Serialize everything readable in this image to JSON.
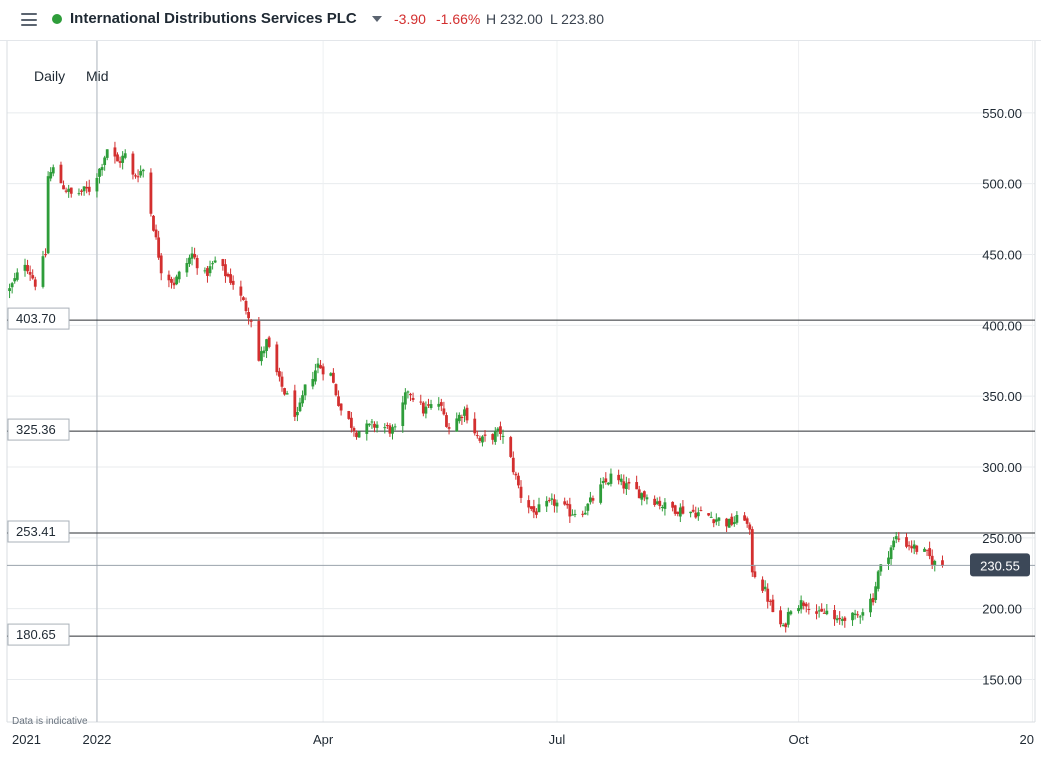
{
  "header": {
    "instrument": "International Distributions Services PLC",
    "change": "-3.90",
    "change_pct": "-1.66%",
    "high": "H 232.00",
    "low": "L 223.80"
  },
  "toolbar": {
    "interval": "Daily",
    "price_type": "Mid"
  },
  "footnote": "Data is indicative",
  "colors": {
    "up": "#2e9d3a",
    "down": "#d32f2f",
    "live_dot": "#2e9d3a",
    "last_price_tag": "#3c4858"
  },
  "chart_data": {
    "type": "candlestick",
    "y_ticks": [
      "550.00",
      "500.00",
      "450.00",
      "400.00",
      "350.00",
      "300.00",
      "250.00",
      "200.00",
      "150.00"
    ],
    "y_tick_values": [
      550,
      500,
      450,
      400,
      350,
      300,
      250,
      200,
      150
    ],
    "x_ticks": [
      "2021",
      "2022",
      "Apr",
      "Jul",
      "Oct",
      "20"
    ],
    "x_tick_dates": [
      "2021-11-29",
      "2022-01-03",
      "2022-04-01",
      "2022-07-01",
      "2022-10-03",
      "2023-01-02"
    ],
    "y_range": [
      120,
      600
    ],
    "x_range": [
      "2021-11-29",
      "2023-01-03"
    ],
    "horizontal_lines": [
      {
        "label": "403.70",
        "value": 403.7
      },
      {
        "label": "325.36",
        "value": 325.36
      },
      {
        "label": "253.41",
        "value": 253.41
      },
      {
        "label": "180.65",
        "value": 180.65
      }
    ],
    "last_price": {
      "label": "230.55",
      "value": 230.55
    },
    "vertical_marker_date": "2022-01-03",
    "grid": true,
    "anchors": [
      [
        "2021-11-30",
        425
      ],
      [
        "2021-12-06",
        445
      ],
      [
        "2021-12-10",
        430
      ],
      [
        "2021-12-14",
        450
      ],
      [
        "2021-12-15",
        505
      ],
      [
        "2021-12-17",
        510
      ],
      [
        "2021-12-21",
        498
      ],
      [
        "2021-12-24",
        492
      ],
      [
        "2021-12-31",
        496
      ],
      [
        "2022-01-04",
        510
      ],
      [
        "2022-01-07",
        525
      ],
      [
        "2022-01-11",
        515
      ],
      [
        "2022-01-14",
        520
      ],
      [
        "2022-01-17",
        505
      ],
      [
        "2022-01-21",
        510
      ],
      [
        "2022-01-25",
        470
      ],
      [
        "2022-01-28",
        440
      ],
      [
        "2022-02-02",
        430
      ],
      [
        "2022-02-09",
        450
      ],
      [
        "2022-02-14",
        435
      ],
      [
        "2022-02-18",
        445
      ],
      [
        "2022-02-25",
        430
      ],
      [
        "2022-03-04",
        405
      ],
      [
        "2022-03-07",
        375
      ],
      [
        "2022-03-10",
        388
      ],
      [
        "2022-03-15",
        360
      ],
      [
        "2022-03-22",
        335
      ],
      [
        "2022-03-25",
        355
      ],
      [
        "2022-03-30",
        372
      ],
      [
        "2022-04-04",
        365
      ],
      [
        "2022-04-08",
        340
      ],
      [
        "2022-04-14",
        325
      ],
      [
        "2022-04-22",
        330
      ],
      [
        "2022-04-29",
        325
      ],
      [
        "2022-05-04",
        355
      ],
      [
        "2022-05-10",
        340
      ],
      [
        "2022-05-16",
        345
      ],
      [
        "2022-05-20",
        328
      ],
      [
        "2022-05-26",
        340
      ],
      [
        "2022-06-01",
        318
      ],
      [
        "2022-06-06",
        322
      ],
      [
        "2022-06-09",
        325
      ],
      [
        "2022-06-13",
        305
      ],
      [
        "2022-06-17",
        280
      ],
      [
        "2022-06-22",
        268
      ],
      [
        "2022-06-30",
        275
      ],
      [
        "2022-07-06",
        268
      ],
      [
        "2022-07-12",
        270
      ],
      [
        "2022-07-18",
        285
      ],
      [
        "2022-07-22",
        293
      ],
      [
        "2022-07-27",
        287
      ],
      [
        "2022-08-02",
        282
      ],
      [
        "2022-08-08",
        277
      ],
      [
        "2022-08-12",
        272
      ],
      [
        "2022-08-18",
        270
      ],
      [
        "2022-08-24",
        268
      ],
      [
        "2022-08-30",
        265
      ],
      [
        "2022-09-06",
        260
      ],
      [
        "2022-09-12",
        265
      ],
      [
        "2022-09-14",
        252
      ],
      [
        "2022-09-15",
        228
      ],
      [
        "2022-09-20",
        212
      ],
      [
        "2022-09-23",
        198
      ],
      [
        "2022-09-27",
        185
      ],
      [
        "2022-09-30",
        202
      ],
      [
        "2022-10-06",
        205
      ],
      [
        "2022-10-11",
        195
      ],
      [
        "2022-10-14",
        198
      ],
      [
        "2022-10-18",
        190
      ],
      [
        "2022-10-21",
        195
      ],
      [
        "2022-10-25",
        193
      ],
      [
        "2022-10-28",
        200
      ],
      [
        "2022-11-01",
        208
      ],
      [
        "2022-11-03",
        225
      ],
      [
        "2022-11-07",
        240
      ],
      [
        "2022-11-10",
        250
      ],
      [
        "2022-11-15",
        245
      ],
      [
        "2022-11-18",
        242
      ],
      [
        "2022-11-22",
        238
      ],
      [
        "2022-11-25",
        232
      ],
      [
        "2022-11-28",
        230.55
      ]
    ]
  }
}
